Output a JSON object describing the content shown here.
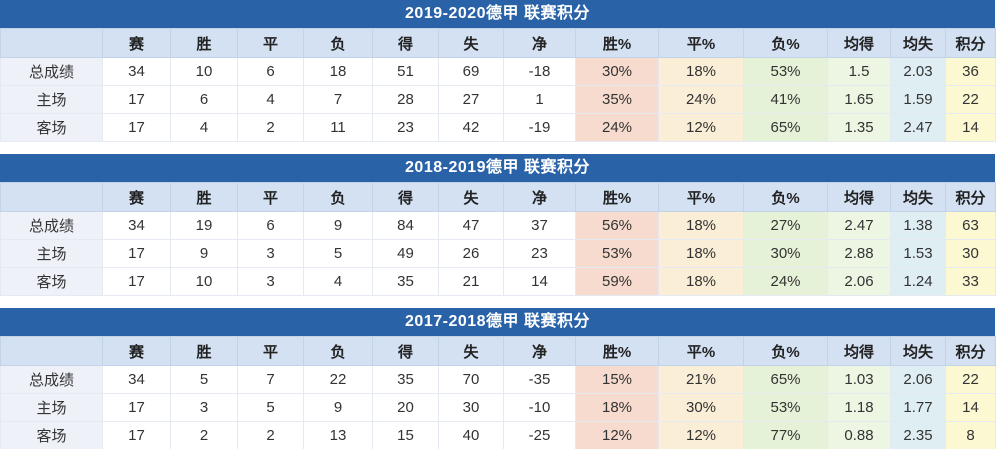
{
  "theme": {
    "title_bar_bg": "#2a62a7",
    "title_text": "#ffffff",
    "header_bg": "#d3e1f3",
    "label_bg": "#eef1f8",
    "text": "#333333"
  },
  "column_colors": {
    "win_pct": "#f7dbce",
    "draw_pct": "#faeed6",
    "loss_pct": "#e6f2d8",
    "avg_scored": "#edf6e3",
    "avg_conceded": "#dfeef3",
    "points": "#fbf8d2"
  },
  "columns": [
    "",
    "赛",
    "胜",
    "平",
    "负",
    "得",
    "失",
    "净",
    "胜%",
    "平%",
    "负%",
    "均得",
    "均失",
    "积分"
  ],
  "tables": [
    {
      "title": "2019-2020德甲 联赛积分",
      "rows": [
        {
          "label": "总成绩",
          "values": [
            "34",
            "10",
            "6",
            "18",
            "51",
            "69",
            "-18",
            "30%",
            "18%",
            "53%",
            "1.5",
            "2.03",
            "36"
          ]
        },
        {
          "label": "主场",
          "values": [
            "17",
            "6",
            "4",
            "7",
            "28",
            "27",
            "1",
            "35%",
            "24%",
            "41%",
            "1.65",
            "1.59",
            "22"
          ]
        },
        {
          "label": "客场",
          "values": [
            "17",
            "4",
            "2",
            "11",
            "23",
            "42",
            "-19",
            "24%",
            "12%",
            "65%",
            "1.35",
            "2.47",
            "14"
          ]
        }
      ]
    },
    {
      "title": "2018-2019德甲 联赛积分",
      "rows": [
        {
          "label": "总成绩",
          "values": [
            "34",
            "19",
            "6",
            "9",
            "84",
            "47",
            "37",
            "56%",
            "18%",
            "27%",
            "2.47",
            "1.38",
            "63"
          ]
        },
        {
          "label": "主场",
          "values": [
            "17",
            "9",
            "3",
            "5",
            "49",
            "26",
            "23",
            "53%",
            "18%",
            "30%",
            "2.88",
            "1.53",
            "30"
          ]
        },
        {
          "label": "客场",
          "values": [
            "17",
            "10",
            "3",
            "4",
            "35",
            "21",
            "14",
            "59%",
            "18%",
            "24%",
            "2.06",
            "1.24",
            "33"
          ]
        }
      ]
    },
    {
      "title": "2017-2018德甲 联赛积分",
      "rows": [
        {
          "label": "总成绩",
          "values": [
            "34",
            "5",
            "7",
            "22",
            "35",
            "70",
            "-35",
            "15%",
            "21%",
            "65%",
            "1.03",
            "2.06",
            "22"
          ]
        },
        {
          "label": "主场",
          "values": [
            "17",
            "3",
            "5",
            "9",
            "20",
            "30",
            "-10",
            "18%",
            "30%",
            "53%",
            "1.18",
            "1.77",
            "14"
          ]
        },
        {
          "label": "客场",
          "values": [
            "17",
            "2",
            "2",
            "13",
            "15",
            "40",
            "-25",
            "12%",
            "12%",
            "77%",
            "0.88",
            "2.35",
            "8"
          ]
        }
      ]
    }
  ]
}
